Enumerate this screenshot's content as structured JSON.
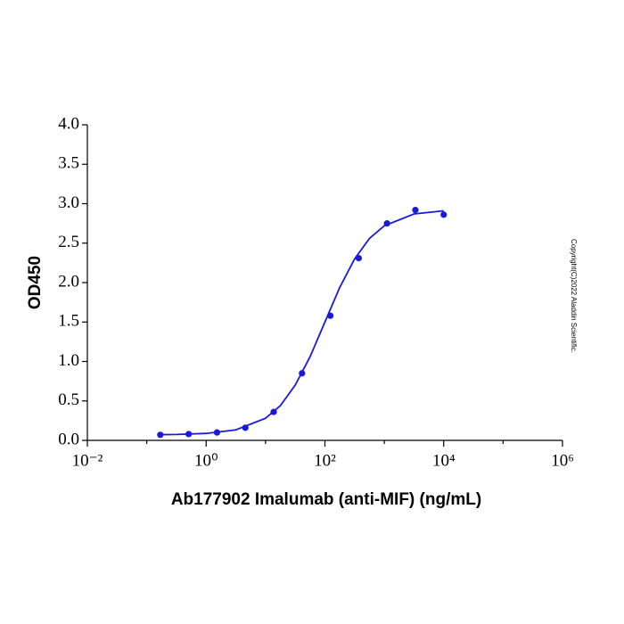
{
  "chart_data": {
    "type": "scatter",
    "xlabel": "Ab177902 Imalumab (anti-MIF) (ng/mL)",
    "ylabel": "OD450",
    "annotation": "Copyright(C)2022 Aladdin Scientific.",
    "xscale": "log",
    "xlim": [
      0.01,
      1000000
    ],
    "xticks": [
      {
        "value": 0.01,
        "label": "10⁻²"
      },
      {
        "value": 1,
        "label": "10⁰"
      },
      {
        "value": 100,
        "label": "10²"
      },
      {
        "value": 10000,
        "label": "10⁴"
      },
      {
        "value": 1000000,
        "label": "10⁶"
      }
    ],
    "xminorticks": [
      0.1,
      10,
      1000,
      100000
    ],
    "ylim": [
      0,
      4
    ],
    "yticks": [
      {
        "value": 0,
        "label": "0.0"
      },
      {
        "value": 0.5,
        "label": "0.5"
      },
      {
        "value": 1,
        "label": "1.0"
      },
      {
        "value": 1.5,
        "label": "1.5"
      },
      {
        "value": 2,
        "label": "2.0"
      },
      {
        "value": 2.5,
        "label": "2.5"
      },
      {
        "value": 3,
        "label": "3.0"
      },
      {
        "value": 3.5,
        "label": "3.5"
      },
      {
        "value": 4,
        "label": "4.0"
      }
    ],
    "color": "#1a1ad6",
    "series": [
      {
        "kind": "points",
        "x": [
          0.169,
          0.508,
          1.524,
          4.572,
          13.72,
          41.15,
          123.5,
          370.4,
          1111,
          3333,
          10000
        ],
        "values": [
          0.07,
          0.08,
          0.1,
          0.16,
          0.36,
          0.85,
          1.58,
          2.31,
          2.75,
          2.92,
          2.86
        ]
      },
      {
        "kind": "curve",
        "x": [
          0.17,
          0.316,
          1,
          3.16,
          10,
          17.8,
          31.6,
          56.2,
          100,
          178,
          316,
          562,
          1000,
          3162,
          10000
        ],
        "values": [
          0.073,
          0.075,
          0.088,
          0.133,
          0.28,
          0.44,
          0.7,
          1.06,
          1.5,
          1.94,
          2.3,
          2.56,
          2.72,
          2.87,
          2.91
        ]
      }
    ]
  }
}
